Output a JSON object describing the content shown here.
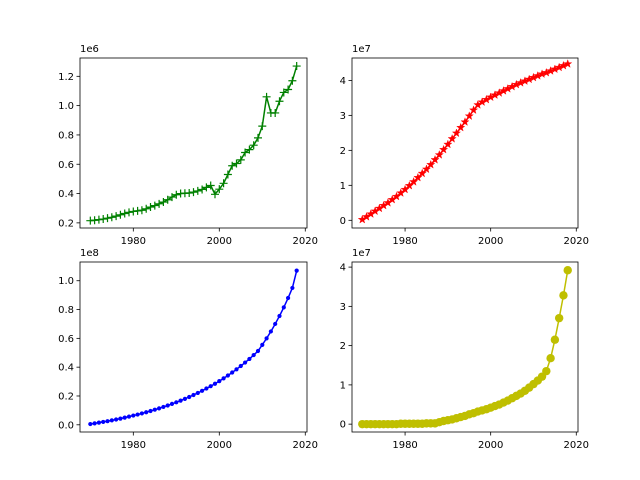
{
  "chart_data": [
    {
      "type": "line",
      "offset_text": "1e6",
      "marker": "plus",
      "color": "#008000",
      "xlim": [
        1967.6,
        2020.4
      ],
      "ylim": [
        0.165,
        1.325
      ],
      "xticks": [
        1980,
        2000,
        2020
      ],
      "xtick_labels": [
        "1980",
        "2000",
        "2020"
      ],
      "yticks": [
        0.2,
        0.4,
        0.6,
        0.8,
        1.0,
        1.2
      ],
      "ytick_labels": [
        "0.2",
        "0.4",
        "0.6",
        "0.8",
        "1.0",
        "1.2"
      ],
      "grid": false,
      "series": [
        {
          "x": [
            1970,
            1971,
            1972,
            1973,
            1974,
            1975,
            1976,
            1977,
            1978,
            1979,
            1980,
            1981,
            1982,
            1983,
            1984,
            1985,
            1986,
            1987,
            1988,
            1989,
            1990,
            1991,
            1992,
            1993,
            1994,
            1995,
            1996,
            1997,
            1998,
            1999,
            2000,
            2001,
            2002,
            2003,
            2004,
            2005,
            2006,
            2007,
            2008,
            2009,
            2010,
            2011,
            2012,
            2013,
            2014,
            2015,
            2016,
            2017,
            2018
          ],
          "y": [
            0.215,
            0.218,
            0.222,
            0.226,
            0.232,
            0.238,
            0.246,
            0.255,
            0.264,
            0.272,
            0.278,
            0.282,
            0.286,
            0.296,
            0.308,
            0.318,
            0.33,
            0.342,
            0.358,
            0.376,
            0.392,
            0.4,
            0.402,
            0.404,
            0.41,
            0.418,
            0.428,
            0.442,
            0.455,
            0.395,
            0.43,
            0.47,
            0.53,
            0.59,
            0.605,
            0.63,
            0.68,
            0.7,
            0.73,
            0.78,
            0.86,
            1.06,
            0.95,
            0.95,
            1.03,
            1.09,
            1.11,
            1.17,
            1.27
          ]
        }
      ]
    },
    {
      "type": "line",
      "offset_text": "1e7",
      "marker": "star",
      "color": "#ff0000",
      "xlim": [
        1967.6,
        2020.4
      ],
      "ylim": [
        -0.22,
        4.64
      ],
      "xticks": [
        1980,
        2000,
        2020
      ],
      "xtick_labels": [
        "1980",
        "2000",
        "2020"
      ],
      "yticks": [
        0,
        1,
        2,
        3,
        4
      ],
      "ytick_labels": [
        "0",
        "1",
        "2",
        "3",
        "4"
      ],
      "grid": false,
      "series": [
        {
          "x": [
            1970,
            1971,
            1972,
            1973,
            1974,
            1975,
            1976,
            1977,
            1978,
            1979,
            1980,
            1981,
            1982,
            1983,
            1984,
            1985,
            1986,
            1987,
            1988,
            1989,
            1990,
            1991,
            1992,
            1993,
            1994,
            1995,
            1996,
            1997,
            1998,
            1999,
            2000,
            2001,
            2002,
            2003,
            2004,
            2005,
            2006,
            2007,
            2008,
            2009,
            2010,
            2011,
            2012,
            2013,
            2014,
            2015,
            2016,
            2017,
            2018
          ],
          "y": [
            0.02,
            0.1,
            0.18,
            0.26,
            0.34,
            0.42,
            0.5,
            0.59,
            0.68,
            0.78,
            0.88,
            0.99,
            1.1,
            1.22,
            1.34,
            1.46,
            1.59,
            1.73,
            1.87,
            2.02,
            2.17,
            2.33,
            2.49,
            2.65,
            2.81,
            2.98,
            3.15,
            3.3,
            3.38,
            3.45,
            3.52,
            3.58,
            3.64,
            3.7,
            3.76,
            3.82,
            3.88,
            3.93,
            3.98,
            4.03,
            4.08,
            4.13,
            4.18,
            4.22,
            4.27,
            4.32,
            4.37,
            4.42,
            4.47
          ]
        }
      ]
    },
    {
      "type": "line",
      "offset_text": "1e8",
      "marker": "dot",
      "color": "#0000ff",
      "xlim": [
        1967.6,
        2020.4
      ],
      "ylim": [
        -0.05,
        1.13
      ],
      "xticks": [
        1980,
        2000,
        2020
      ],
      "xtick_labels": [
        "1980",
        "2000",
        "2020"
      ],
      "yticks": [
        0.0,
        0.2,
        0.4,
        0.6,
        0.8,
        1.0
      ],
      "ytick_labels": [
        "0.0",
        "0.2",
        "0.4",
        "0.6",
        "0.8",
        "1.0"
      ],
      "grid": false,
      "series": [
        {
          "x": [
            1970,
            1971,
            1972,
            1973,
            1974,
            1975,
            1976,
            1977,
            1978,
            1979,
            1980,
            1981,
            1982,
            1983,
            1984,
            1985,
            1986,
            1987,
            1988,
            1989,
            1990,
            1991,
            1992,
            1993,
            1994,
            1995,
            1996,
            1997,
            1998,
            1999,
            2000,
            2001,
            2002,
            2003,
            2004,
            2005,
            2006,
            2007,
            2008,
            2009,
            2010,
            2011,
            2012,
            2013,
            2014,
            2015,
            2016,
            2017,
            2018
          ],
          "y": [
            0.005,
            0.01,
            0.015,
            0.02,
            0.025,
            0.031,
            0.037,
            0.043,
            0.05,
            0.057,
            0.064,
            0.071,
            0.079,
            0.087,
            0.096,
            0.105,
            0.114,
            0.124,
            0.134,
            0.145,
            0.156,
            0.168,
            0.18,
            0.193,
            0.207,
            0.221,
            0.236,
            0.252,
            0.268,
            0.285,
            0.303,
            0.322,
            0.342,
            0.363,
            0.385,
            0.408,
            0.432,
            0.457,
            0.484,
            0.512,
            0.555,
            0.6,
            0.648,
            0.7,
            0.755,
            0.815,
            0.88,
            0.95,
            1.07
          ]
        }
      ]
    },
    {
      "type": "line",
      "offset_text": "1e7",
      "marker": "circle",
      "color": "#bfbf00",
      "xlim": [
        1967.6,
        2020.4
      ],
      "ylim": [
        -0.2,
        4.13
      ],
      "xticks": [
        1980,
        2000,
        2020
      ],
      "xtick_labels": [
        "1980",
        "2000",
        "2020"
      ],
      "yticks": [
        0,
        1,
        2,
        3,
        4
      ],
      "ytick_labels": [
        "0",
        "1",
        "2",
        "3",
        "4"
      ],
      "grid": false,
      "series": [
        {
          "x": [
            1970,
            1971,
            1972,
            1973,
            1974,
            1975,
            1976,
            1977,
            1978,
            1979,
            1980,
            1981,
            1982,
            1983,
            1984,
            1985,
            1986,
            1987,
            1988,
            1989,
            1990,
            1991,
            1992,
            1993,
            1994,
            1995,
            1996,
            1997,
            1998,
            1999,
            2000,
            2001,
            2002,
            2003,
            2004,
            2005,
            2006,
            2007,
            2008,
            2009,
            2010,
            2011,
            2012,
            2013,
            2014,
            2015,
            2016,
            2017,
            2018
          ],
          "y": [
            0.0,
            0.0,
            0.0,
            0.0,
            0.0,
            0.0,
            0.0,
            0.0,
            0.0,
            0.01,
            0.01,
            0.01,
            0.01,
            0.01,
            0.01,
            0.02,
            0.02,
            0.02,
            0.05,
            0.08,
            0.1,
            0.12,
            0.15,
            0.18,
            0.21,
            0.25,
            0.28,
            0.32,
            0.35,
            0.38,
            0.42,
            0.46,
            0.5,
            0.55,
            0.6,
            0.66,
            0.72,
            0.78,
            0.85,
            0.93,
            1.02,
            1.11,
            1.21,
            1.35,
            1.68,
            2.15,
            2.7,
            3.28,
            3.92
          ]
        }
      ]
    }
  ]
}
